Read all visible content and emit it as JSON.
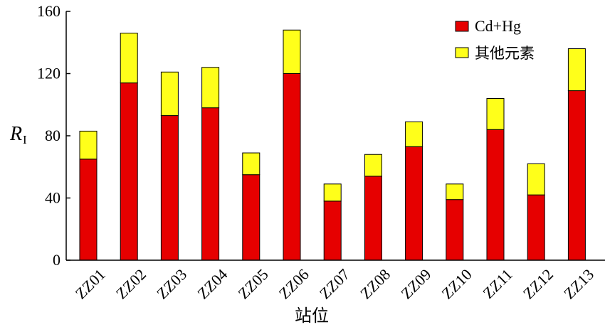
{
  "chart_data": {
    "type": "bar",
    "stacked": true,
    "categories": [
      "ZZ01",
      "ZZ02",
      "ZZ03",
      "ZZ04",
      "ZZ05",
      "ZZ06",
      "ZZ07",
      "ZZ08",
      "ZZ09",
      "ZZ10",
      "ZZ11",
      "ZZ12",
      "ZZ13"
    ],
    "series": [
      {
        "name": "Cd+Hg",
        "color": "#e60000",
        "values": [
          65,
          114,
          93,
          98,
          55,
          120,
          38,
          54,
          73,
          39,
          84,
          42,
          109
        ]
      },
      {
        "name": "其他元素",
        "color": "#ffff1a",
        "values": [
          18,
          32,
          28,
          26,
          14,
          28,
          11,
          14,
          16,
          10,
          20,
          20,
          27
        ]
      }
    ],
    "xlabel": "站位",
    "ylabel": {
      "main": "R",
      "sub": "I"
    },
    "ylim": [
      0,
      160
    ],
    "yticks": [
      "0",
      "40",
      "80",
      "120",
      "160"
    ],
    "legend_position": "top-right",
    "grid": false
  }
}
